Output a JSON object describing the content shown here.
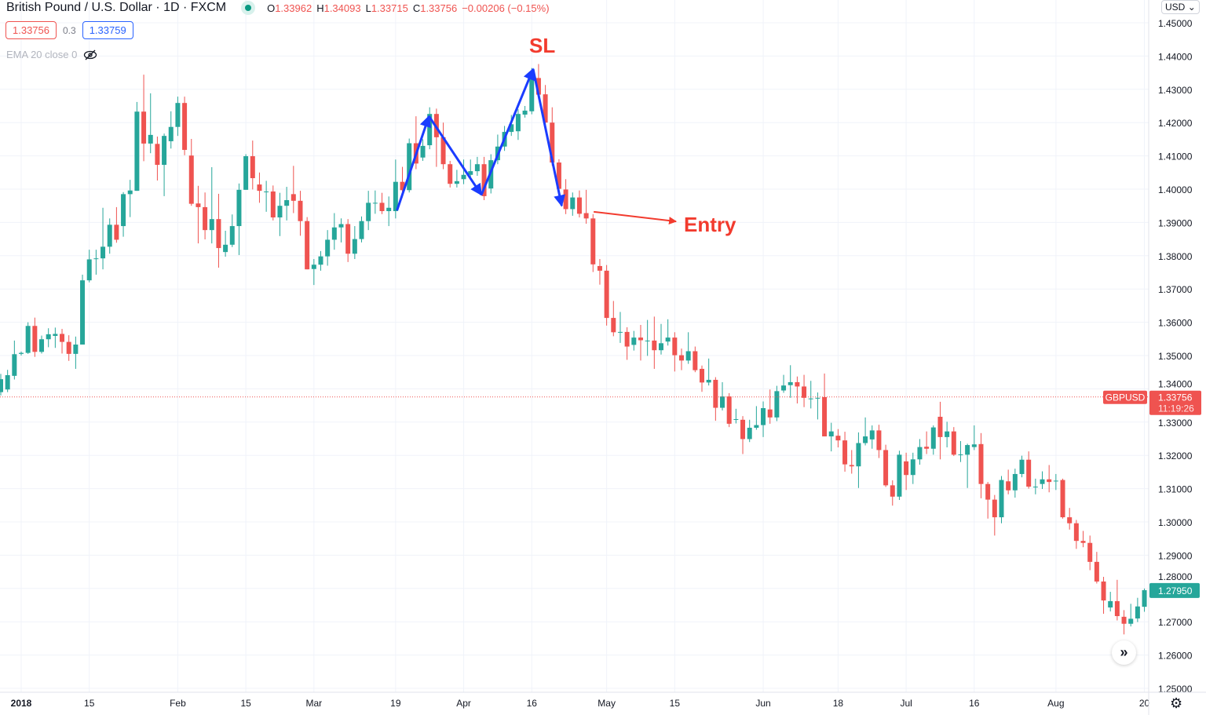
{
  "header": {
    "title": "British Pound / U.S. Dollar · 1D · FXCM",
    "status_color": "#089981",
    "ohlc": {
      "o_label": "O",
      "o": "1.33962",
      "h_label": "H",
      "h": "1.34093",
      "l_label": "L",
      "l": "1.33715",
      "c_label": "C",
      "c": "1.33756",
      "change": "−0.00206 (−0.15%)"
    },
    "sell_price": "1.33756",
    "spread": "0.3",
    "buy_price": "1.33759",
    "indicator": "EMA 20 close 0",
    "indicator_icon": "eye-off-icon"
  },
  "price_axis": {
    "currency": "USD",
    "ticks": [
      "1.45000",
      "1.44000",
      "1.43000",
      "1.42000",
      "1.41000",
      "1.40000",
      "1.39000",
      "1.38000",
      "1.37000",
      "1.36000",
      "1.35000",
      "1.34000",
      "1.33000",
      "1.32000",
      "1.31000",
      "1.30000",
      "1.29000",
      "1.28000",
      "1.27000",
      "1.26000",
      "1.25000"
    ],
    "symbol_label": "GBPUSD",
    "current_price": "1.33756",
    "current_price_value": 1.33756,
    "countdown": "11:19:26",
    "last_close": "1.27950",
    "last_close_value": 1.2795
  },
  "colors": {
    "up": "#26a69a",
    "down": "#ef5350",
    "annotation_blue": "#1a3cff",
    "annotation_red": "#f23b2e"
  },
  "annotations": {
    "sl": "SL",
    "entry": "Entry"
  },
  "chart_data": {
    "type": "candlestick",
    "title": "British Pound / U.S. Dollar · 1D · FXCM",
    "ylim": [
      1.25,
      1.45
    ],
    "grid": true,
    "x_ticks": [
      "2018",
      "15",
      "Feb",
      "15",
      "Mar",
      "19",
      "Apr",
      "16",
      "May",
      "15",
      "Jun",
      "18",
      "Jul",
      "16",
      "Aug",
      "20"
    ],
    "ohlc_fields": [
      "open",
      "high",
      "low",
      "close"
    ],
    "candles": [
      [
        1.339,
        1.3445,
        1.338,
        1.3429
      ],
      [
        1.3398,
        1.3457,
        1.339,
        1.3441
      ],
      [
        1.3439,
        1.3545,
        1.3428,
        1.3504
      ],
      [
        1.3505,
        1.3512,
        1.35,
        1.3508
      ],
      [
        1.3508,
        1.36,
        1.3505,
        1.3589
      ],
      [
        1.3589,
        1.3614,
        1.3496,
        1.3511
      ],
      [
        1.3511,
        1.356,
        1.3506,
        1.3549
      ],
      [
        1.3549,
        1.3582,
        1.3525,
        1.3564
      ],
      [
        1.3559,
        1.3584,
        1.3523,
        1.3565
      ],
      [
        1.3565,
        1.358,
        1.3506,
        1.3541
      ],
      [
        1.3541,
        1.3561,
        1.3484,
        1.3505
      ],
      [
        1.3505,
        1.3557,
        1.346,
        1.3533
      ],
      [
        1.3533,
        1.3743,
        1.3533,
        1.3726
      ],
      [
        1.3726,
        1.3818,
        1.372,
        1.3789
      ],
      [
        1.379,
        1.3818,
        1.3743,
        1.3792
      ],
      [
        1.3792,
        1.3944,
        1.3759,
        1.3827
      ],
      [
        1.3827,
        1.3912,
        1.3806,
        1.3893
      ],
      [
        1.3893,
        1.3946,
        1.3839,
        1.3848
      ],
      [
        1.3889,
        1.3991,
        1.3857,
        1.3985
      ],
      [
        1.3985,
        1.4028,
        1.3916,
        1.3996
      ],
      [
        1.3995,
        1.4262,
        1.3995,
        1.4233
      ],
      [
        1.4233,
        1.4344,
        1.4084,
        1.4137
      ],
      [
        1.4137,
        1.4288,
        1.4108,
        1.4163
      ],
      [
        1.4136,
        1.4158,
        1.4026,
        1.4073
      ],
      [
        1.4073,
        1.4167,
        1.3979,
        1.416
      ],
      [
        1.4144,
        1.4234,
        1.4122,
        1.4187
      ],
      [
        1.4187,
        1.4278,
        1.416,
        1.4259
      ],
      [
        1.4259,
        1.4278,
        1.4102,
        1.4118
      ],
      [
        1.4101,
        1.4151,
        1.395,
        1.3956
      ],
      [
        1.3957,
        1.401,
        1.3837,
        1.3946
      ],
      [
        1.3946,
        1.399,
        1.3849,
        1.3877
      ],
      [
        1.3877,
        1.4066,
        1.3837,
        1.391
      ],
      [
        1.391,
        1.3986,
        1.3764,
        1.3823
      ],
      [
        1.3811,
        1.3875,
        1.3797,
        1.3833
      ],
      [
        1.3833,
        1.3924,
        1.3826,
        1.3889
      ],
      [
        1.3889,
        1.4017,
        1.3802,
        1.3998
      ],
      [
        1.3998,
        1.4105,
        1.3998,
        1.4099
      ],
      [
        1.4099,
        1.4146,
        1.3999,
        1.4033
      ],
      [
        1.4014,
        1.405,
        1.3959,
        1.3995
      ],
      [
        1.3993,
        1.4025,
        1.3932,
        1.3993
      ],
      [
        1.3993,
        1.4011,
        1.3906,
        1.3915
      ],
      [
        1.3915,
        1.3989,
        1.3859,
        1.395
      ],
      [
        1.395,
        1.4007,
        1.3906,
        1.3967
      ],
      [
        1.3985,
        1.407,
        1.3928,
        1.3965
      ],
      [
        1.3965,
        1.3995,
        1.386,
        1.3904
      ],
      [
        1.3904,
        1.3916,
        1.3759,
        1.3759
      ],
      [
        1.376,
        1.379,
        1.3712,
        1.3773
      ],
      [
        1.3773,
        1.3814,
        1.3755,
        1.3798
      ],
      [
        1.3798,
        1.3877,
        1.377,
        1.3848
      ],
      [
        1.3848,
        1.3928,
        1.3818,
        1.3885
      ],
      [
        1.3885,
        1.3912,
        1.384,
        1.3895
      ],
      [
        1.3895,
        1.391,
        1.3781,
        1.3806
      ],
      [
        1.3806,
        1.3889,
        1.379,
        1.385
      ],
      [
        1.385,
        1.3918,
        1.384,
        1.3904
      ],
      [
        1.3904,
        1.3995,
        1.3877,
        1.3959
      ],
      [
        1.3959,
        1.3996,
        1.3926,
        1.3959
      ],
      [
        1.3959,
        1.3989,
        1.3925,
        1.3934
      ],
      [
        1.3934,
        1.3978,
        1.3889,
        1.3944
      ],
      [
        1.3934,
        1.4089,
        1.3912,
        1.4022
      ],
      [
        1.4022,
        1.4067,
        1.3975,
        1.3997
      ],
      [
        1.3997,
        1.4152,
        1.399,
        1.4138
      ],
      [
        1.4138,
        1.4219,
        1.406,
        1.4077
      ],
      [
        1.4095,
        1.415,
        1.4085,
        1.413
      ],
      [
        1.4132,
        1.4246,
        1.412,
        1.4226
      ],
      [
        1.4226,
        1.4242,
        1.4067,
        1.4156
      ],
      [
        1.4156,
        1.42,
        1.406,
        1.4075
      ],
      [
        1.4075,
        1.4085,
        1.4005,
        1.4016
      ],
      [
        1.4016,
        1.4058,
        1.4005,
        1.4024
      ],
      [
        1.403,
        1.4089,
        1.4015,
        1.4043
      ],
      [
        1.4043,
        1.4089,
        1.403,
        1.4054
      ],
      [
        1.4054,
        1.4097,
        1.404,
        1.4075
      ],
      [
        1.4075,
        1.4097,
        1.3967,
        1.3979
      ],
      [
        1.4002,
        1.4105,
        1.3987,
        1.4087
      ],
      [
        1.4087,
        1.4164,
        1.4075,
        1.4128
      ],
      [
        1.4128,
        1.419,
        1.4115,
        1.4172
      ],
      [
        1.4172,
        1.4223,
        1.416,
        1.4195
      ],
      [
        1.4174,
        1.424,
        1.4148,
        1.4226
      ],
      [
        1.4224,
        1.425,
        1.4215,
        1.4236
      ],
      [
        1.4234,
        1.4364,
        1.4225,
        1.4334
      ],
      [
        1.4334,
        1.4376,
        1.427,
        1.4284
      ],
      [
        1.4285,
        1.4313,
        1.419,
        1.42
      ],
      [
        1.42,
        1.4246,
        1.407,
        1.408
      ],
      [
        1.408,
        1.409,
        1.399,
        1.4001
      ],
      [
        1.3999,
        1.403,
        1.3925,
        1.394
      ],
      [
        1.394,
        1.399,
        1.392,
        1.3975
      ],
      [
        1.3975,
        1.3996,
        1.3915,
        1.3926
      ],
      [
        1.3928,
        1.3998,
        1.3896,
        1.3912
      ],
      [
        1.3912,
        1.3925,
        1.3751,
        1.3774
      ],
      [
        1.3769,
        1.379,
        1.3713,
        1.3755
      ],
      [
        1.3755,
        1.3772,
        1.359,
        1.3613
      ],
      [
        1.3613,
        1.3664,
        1.3558,
        1.357
      ],
      [
        1.3571,
        1.3631,
        1.3538,
        1.3571
      ],
      [
        1.3571,
        1.3585,
        1.3487,
        1.3527
      ],
      [
        1.3532,
        1.3574,
        1.3515,
        1.3554
      ],
      [
        1.3554,
        1.3592,
        1.3485,
        1.3546
      ],
      [
        1.3545,
        1.3607,
        1.3499,
        1.3545
      ],
      [
        1.3545,
        1.3617,
        1.346,
        1.3516
      ],
      [
        1.3516,
        1.3595,
        1.3503,
        1.3537
      ],
      [
        1.3542,
        1.3609,
        1.353,
        1.3554
      ],
      [
        1.3554,
        1.357,
        1.3452,
        1.3501
      ],
      [
        1.3501,
        1.3521,
        1.3456,
        1.3485
      ],
      [
        1.3485,
        1.357,
        1.3475,
        1.3513
      ],
      [
        1.3513,
        1.3527,
        1.345,
        1.3456
      ],
      [
        1.346,
        1.347,
        1.3391,
        1.3419
      ],
      [
        1.3419,
        1.3491,
        1.341,
        1.3427
      ],
      [
        1.3427,
        1.3435,
        1.3304,
        1.3343
      ],
      [
        1.3343,
        1.342,
        1.3335,
        1.3377
      ],
      [
        1.3377,
        1.3387,
        1.3285,
        1.3295
      ],
      [
        1.3309,
        1.334,
        1.3296,
        1.3309
      ],
      [
        1.3307,
        1.3318,
        1.3204,
        1.3249
      ],
      [
        1.3249,
        1.3307,
        1.324,
        1.3283
      ],
      [
        1.3283,
        1.3348,
        1.3277,
        1.3291
      ],
      [
        1.3291,
        1.3362,
        1.3255,
        1.3342
      ],
      [
        1.3338,
        1.3398,
        1.3295,
        1.3314
      ],
      [
        1.3314,
        1.3409,
        1.3303,
        1.3393
      ],
      [
        1.3395,
        1.3442,
        1.3388,
        1.341
      ],
      [
        1.3411,
        1.3471,
        1.3373,
        1.342
      ],
      [
        1.342,
        1.3437,
        1.3356,
        1.3407
      ],
      [
        1.3407,
        1.3442,
        1.3345,
        1.3373
      ],
      [
        1.3371,
        1.3424,
        1.3341,
        1.3371
      ],
      [
        1.3371,
        1.3389,
        1.3308,
        1.3373
      ],
      [
        1.3375,
        1.3446,
        1.3257,
        1.3257
      ],
      [
        1.3257,
        1.3298,
        1.3212,
        1.3272
      ],
      [
        1.3259,
        1.3279,
        1.3224,
        1.3245
      ],
      [
        1.3245,
        1.3271,
        1.3151,
        1.3173
      ],
      [
        1.3171,
        1.3216,
        1.3145,
        1.3167
      ],
      [
        1.3167,
        1.3269,
        1.3102,
        1.3237
      ],
      [
        1.3237,
        1.3314,
        1.323,
        1.3257
      ],
      [
        1.3248,
        1.329,
        1.322,
        1.3275
      ],
      [
        1.3275,
        1.3292,
        1.3192,
        1.3216
      ],
      [
        1.3216,
        1.3232,
        1.3105,
        1.311
      ],
      [
        1.311,
        1.3125,
        1.3049,
        1.3076
      ],
      [
        1.3076,
        1.3214,
        1.3066,
        1.3202
      ],
      [
        1.3182,
        1.3208,
        1.3096,
        1.3141
      ],
      [
        1.3141,
        1.3208,
        1.3114,
        1.3188
      ],
      [
        1.3188,
        1.3249,
        1.3172,
        1.3225
      ],
      [
        1.3226,
        1.3272,
        1.3204,
        1.322
      ],
      [
        1.322,
        1.329,
        1.3202,
        1.3284
      ],
      [
        1.3316,
        1.3361,
        1.3188,
        1.3255
      ],
      [
        1.3255,
        1.3301,
        1.3224,
        1.3272
      ],
      [
        1.3272,
        1.3285,
        1.3198,
        1.3202
      ],
      [
        1.3203,
        1.3243,
        1.318,
        1.3203
      ],
      [
        1.3202,
        1.3235,
        1.3102,
        1.3231
      ],
      [
        1.3225,
        1.329,
        1.3216,
        1.3233
      ],
      [
        1.3234,
        1.3267,
        1.3071,
        1.3114
      ],
      [
        1.3114,
        1.312,
        1.301,
        1.3067
      ],
      [
        1.3067,
        1.3081,
        1.2959,
        1.3014
      ],
      [
        1.3014,
        1.3138,
        1.2996,
        1.3126
      ],
      [
        1.3122,
        1.3157,
        1.3083,
        1.3095
      ],
      [
        1.3095,
        1.316,
        1.3073,
        1.3144
      ],
      [
        1.3144,
        1.3199,
        1.3134,
        1.3187
      ],
      [
        1.3187,
        1.3212,
        1.31,
        1.3106
      ],
      [
        1.3106,
        1.313,
        1.3083,
        1.3106
      ],
      [
        1.3114,
        1.3152,
        1.3099,
        1.3128
      ],
      [
        1.3128,
        1.3171,
        1.3089,
        1.312
      ],
      [
        1.3124,
        1.3144,
        1.3096,
        1.3124
      ],
      [
        1.3126,
        1.313,
        1.301,
        1.3014
      ],
      [
        1.3014,
        1.3042,
        1.2977,
        1.2996
      ],
      [
        1.2996,
        1.3006,
        1.2919,
        1.2943
      ],
      [
        1.2943,
        1.2973,
        1.2924,
        1.2937
      ],
      [
        1.2937,
        1.2959,
        1.2855,
        1.288
      ],
      [
        1.288,
        1.291,
        1.2815,
        1.2821
      ],
      [
        1.2821,
        1.2835,
        1.2724,
        1.2764
      ],
      [
        1.2743,
        1.279,
        1.2731,
        1.2762
      ],
      [
        1.2762,
        1.2826,
        1.2704,
        1.2717
      ],
      [
        1.2715,
        1.2735,
        1.2662,
        1.2694
      ],
      [
        1.2694,
        1.2754,
        1.2686,
        1.2709
      ],
      [
        1.271,
        1.2772,
        1.2699,
        1.2746
      ],
      [
        1.2745,
        1.28,
        1.273,
        1.2795
      ]
    ]
  }
}
